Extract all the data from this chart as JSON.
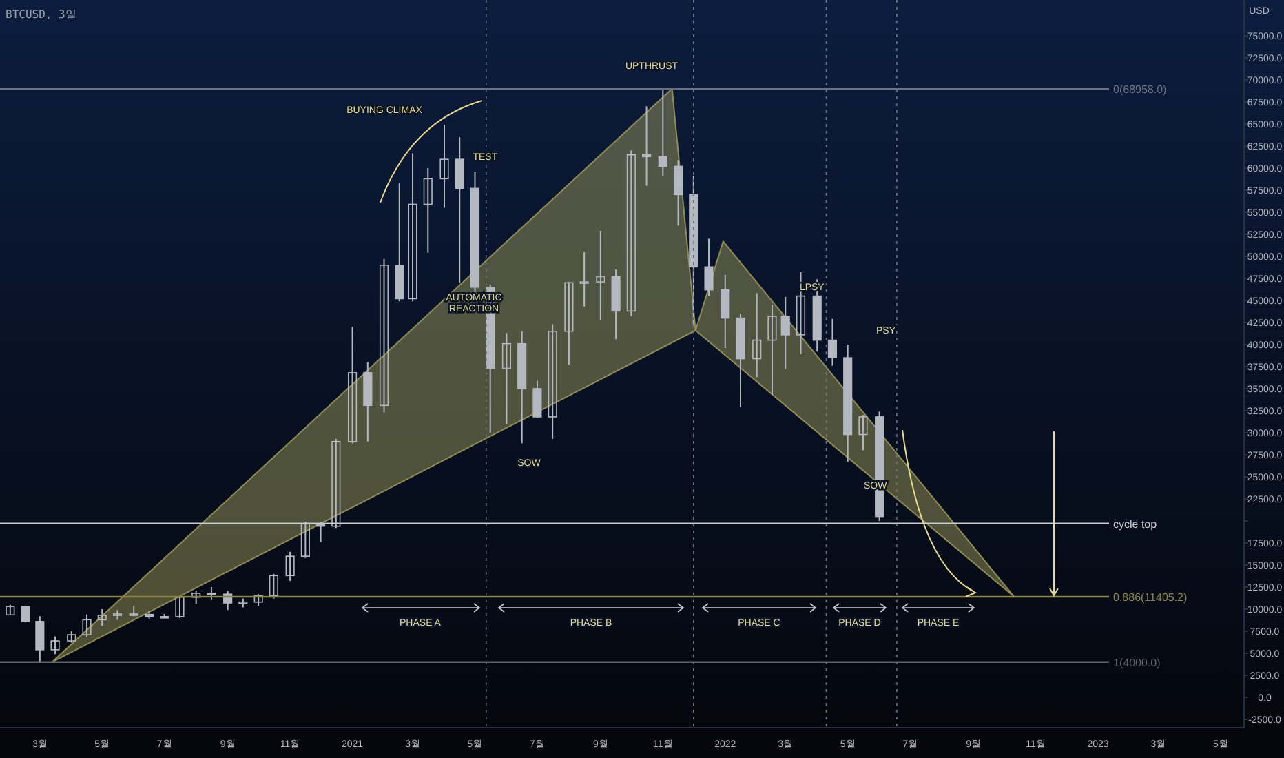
{
  "chart_data": {
    "type": "candlestick",
    "title": "BTCUSD, 3일",
    "ylabel": "USD",
    "xlim": [
      "2020-01-22",
      "2023-05-24"
    ],
    "ylim": [
      -3440,
      79060
    ],
    "xticks": [
      {
        "value": "2020-03",
        "label": "3월"
      },
      {
        "value": "2020-05",
        "label": "5월"
      },
      {
        "value": "2020-07",
        "label": "7월"
      },
      {
        "value": "2020-09",
        "label": "9월"
      },
      {
        "value": "2020-11",
        "label": "11월"
      },
      {
        "value": "2021-01",
        "label": "2021"
      },
      {
        "value": "2021-03",
        "label": "3월"
      },
      {
        "value": "2021-05",
        "label": "5월"
      },
      {
        "value": "2021-07",
        "label": "7월"
      },
      {
        "value": "2021-09",
        "label": "9월"
      },
      {
        "value": "2021-11",
        "label": "11월"
      },
      {
        "value": "2022-01",
        "label": "2022"
      },
      {
        "value": "2022-03",
        "label": "3월"
      },
      {
        "value": "2022-05",
        "label": "5월"
      },
      {
        "value": "2022-07",
        "label": "7월"
      },
      {
        "value": "2022-09",
        "label": "9월"
      },
      {
        "value": "2022-11",
        "label": "11월"
      },
      {
        "value": "2023-01",
        "label": "2023"
      },
      {
        "value": "2023-03",
        "label": "3월"
      },
      {
        "value": "2023-05",
        "label": "5월"
      }
    ],
    "yticks": [
      {
        "value": -2500,
        "label": "-2500.0"
      },
      {
        "value": 0,
        "label": "0.0"
      },
      {
        "value": 2500,
        "label": "2500.0"
      },
      {
        "value": 5000,
        "label": "5000.0"
      },
      {
        "value": 7500,
        "label": "7500.0"
      },
      {
        "value": 10000,
        "label": "10000.0"
      },
      {
        "value": 12500,
        "label": "12500.0"
      },
      {
        "value": 15000,
        "label": "15000.0"
      },
      {
        "value": 17500,
        "label": "17500.0"
      },
      {
        "value": 20000,
        "label": null
      },
      {
        "value": 22500,
        "label": "22500.0"
      },
      {
        "value": 25000,
        "label": "25000.0"
      },
      {
        "value": 27500,
        "label": "27500.0"
      },
      {
        "value": 30000,
        "label": "30000.0"
      },
      {
        "value": 32500,
        "label": "32500.0"
      },
      {
        "value": 35000,
        "label": "35000.0"
      },
      {
        "value": 37500,
        "label": "37500.0"
      },
      {
        "value": 40000,
        "label": "40000.0"
      },
      {
        "value": 42500,
        "label": "42500.0"
      },
      {
        "value": 45000,
        "label": "45000.0"
      },
      {
        "value": 47500,
        "label": "47500.0"
      },
      {
        "value": 50000,
        "label": "50000.0"
      },
      {
        "value": 52500,
        "label": "52500.0"
      },
      {
        "value": 55000,
        "label": "55000.0"
      },
      {
        "value": 57500,
        "label": "57500.0"
      },
      {
        "value": 60000,
        "label": "60000.0"
      },
      {
        "value": 62500,
        "label": "62500.0"
      },
      {
        "value": 65000,
        "label": "65000.0"
      },
      {
        "value": 67500,
        "label": "67500.0"
      },
      {
        "value": 70000,
        "label": "70000.0"
      },
      {
        "value": 72500,
        "label": "72500.0"
      },
      {
        "value": 75000,
        "label": "75000.0"
      }
    ],
    "series": [
      {
        "type": "area",
        "color": "#a8a35e",
        "x": [
          "2020-03-13",
          "2021-11-10",
          "2021-12-03",
          "2020-03-13"
        ],
        "values": [
          4000,
          69000,
          41600,
          4000
        ]
      },
      {
        "type": "area",
        "color": "#a8a35e",
        "x": [
          "2021-12-03",
          "2021-12-30",
          "2022-10-11",
          "2021-12-03"
        ],
        "values": [
          41600,
          51700,
          11400,
          41600
        ]
      },
      {
        "color": "#b4b8c0",
        "x": [
          "2020-02-01",
          "2020-02-16",
          "2020-03-01",
          "2020-03-16",
          "2020-04-01",
          "2020-04-16",
          "2020-05-01",
          "2020-05-16",
          "2020-06-01",
          "2020-06-16",
          "2020-07-01",
          "2020-07-16",
          "2020-08-01",
          "2020-08-16",
          "2020-09-01",
          "2020-09-16",
          "2020-10-01",
          "2020-10-16",
          "2020-11-01",
          "2020-11-16",
          "2020-12-01",
          "2020-12-16",
          "2021-01-01",
          "2021-01-16",
          "2021-02-01",
          "2021-02-16",
          "2021-03-01",
          "2021-03-16",
          "2021-04-01",
          "2021-04-16",
          "2021-05-01",
          "2021-05-16",
          "2021-06-01",
          "2021-06-16",
          "2021-07-01",
          "2021-07-16",
          "2021-08-01",
          "2021-08-16",
          "2021-09-01",
          "2021-09-16",
          "2021-10-01",
          "2021-10-16",
          "2021-11-01",
          "2021-11-16",
          "2021-12-01",
          "2021-12-16",
          "2022-01-01",
          "2022-01-16",
          "2022-02-01",
          "2022-02-16",
          "2022-03-01",
          "2022-03-16",
          "2022-04-01",
          "2022-04-16",
          "2022-05-01",
          "2022-05-16",
          "2022-06-01"
        ],
        "ohlc": [
          [
            9350,
            10500,
            9300,
            10300
          ],
          [
            10300,
            10400,
            8500,
            8600
          ],
          [
            8600,
            9200,
            4000,
            5400
          ],
          [
            5400,
            6900,
            4900,
            6400
          ],
          [
            6400,
            7500,
            6200,
            7100
          ],
          [
            7100,
            9400,
            6800,
            8800
          ],
          [
            8800,
            10000,
            8100,
            9300
          ],
          [
            9300,
            9900,
            8800,
            9450
          ],
          [
            9450,
            10400,
            9200,
            9400
          ],
          [
            9400,
            9800,
            8900,
            9150
          ],
          [
            9150,
            9450,
            9000,
            9150
          ],
          [
            9150,
            11400,
            9000,
            11350
          ],
          [
            11350,
            12100,
            10600,
            11800
          ],
          [
            11800,
            12500,
            11100,
            11700
          ],
          [
            11700,
            12100,
            9900,
            10700
          ],
          [
            10700,
            11200,
            10200,
            10800
          ],
          [
            10800,
            11700,
            10400,
            11500
          ],
          [
            11500,
            14000,
            11200,
            13800
          ],
          [
            13800,
            16500,
            13200,
            16000
          ],
          [
            16000,
            19900,
            15800,
            19700
          ],
          [
            19700,
            19900,
            17600,
            19400
          ],
          [
            19400,
            29300,
            19200,
            29000
          ],
          [
            29000,
            42000,
            28800,
            36800
          ],
          [
            36800,
            38000,
            29000,
            33100
          ],
          [
            33100,
            49700,
            32300,
            49000
          ],
          [
            49000,
            58300,
            44900,
            45200
          ],
          [
            45200,
            61700,
            44900,
            55900
          ],
          [
            55900,
            60000,
            50400,
            58800
          ],
          [
            58800,
            64900,
            55500,
            61000
          ],
          [
            61000,
            63500,
            47000,
            57700
          ],
          [
            57700,
            59600,
            45700,
            46500
          ],
          [
            46500,
            46800,
            30000,
            37300
          ],
          [
            37300,
            41300,
            31000,
            40100
          ],
          [
            40100,
            41500,
            28800,
            35000
          ],
          [
            35000,
            35900,
            31700,
            31800
          ],
          [
            31800,
            42300,
            29300,
            41500
          ],
          [
            41500,
            47100,
            37700,
            47000
          ],
          [
            47000,
            50500,
            44300,
            47100
          ],
          [
            47100,
            52900,
            42800,
            47700
          ],
          [
            47700,
            48500,
            40600,
            43800
          ],
          [
            43800,
            62000,
            43200,
            61500
          ],
          [
            61500,
            67000,
            58000,
            61300
          ],
          [
            61300,
            68958,
            59100,
            60200
          ],
          [
            60200,
            60900,
            53500,
            57000
          ],
          [
            57000,
            59100,
            42000,
            48800
          ],
          [
            48800,
            52000,
            45500,
            46200
          ],
          [
            46200,
            47900,
            39600,
            43000
          ],
          [
            43000,
            43500,
            32900,
            38400
          ],
          [
            38400,
            45800,
            36300,
            40500
          ],
          [
            40500,
            44500,
            34300,
            43200
          ],
          [
            43200,
            45400,
            37200,
            41100
          ],
          [
            41100,
            48200,
            38900,
            45500
          ],
          [
            45500,
            47400,
            39200,
            40500
          ],
          [
            40500,
            42900,
            37600,
            38500
          ],
          [
            38500,
            40000,
            26700,
            29800
          ],
          [
            29800,
            32000,
            28000,
            31800
          ],
          [
            31800,
            32400,
            20000,
            20500
          ]
        ]
      }
    ],
    "ref_lines": [
      {
        "axis": "y",
        "value": 68958,
        "label": "0(68958.0)",
        "color": "#6b7180"
      },
      {
        "axis": "y",
        "value": 19700,
        "label": "cycle top",
        "color": "#c9cbd1"
      },
      {
        "axis": "y",
        "value": 11405.2,
        "label": "0.886(11405.2)",
        "color": "#8c8446"
      },
      {
        "axis": "y",
        "value": 4000,
        "label": "1(4000.0)",
        "color": "#5c616b"
      },
      {
        "axis": "x",
        "value": "2021-05-12",
        "color": "#6b7180",
        "line_style": "dotted"
      },
      {
        "axis": "x",
        "value": "2021-12-01",
        "color": "#6b7180",
        "line_style": "dotted"
      },
      {
        "axis": "x",
        "value": "2022-04-10",
        "color": "#6b7180",
        "line_style": "dotted"
      },
      {
        "axis": "x",
        "value": "2022-06-18",
        "color": "#6b7180",
        "line_style": "dotted"
      }
    ],
    "annotations": [
      "BUYING CLIMAX",
      {
        "text": "TEST",
        "x": "2021-05-11",
        "y": 61400
      },
      "AUTOMATIC REACTION",
      "UPTHRUST",
      "SOW",
      {
        "text": "LPSY",
        "x": "2022-03-27",
        "y": 46600
      },
      "PSY",
      {
        "text": "SOW",
        "x": "2022-05-28",
        "y": 24100
      },
      "PHASE A",
      "PHASE B",
      "PHASE C",
      "PHASE D",
      "PHASE E"
    ]
  }
}
